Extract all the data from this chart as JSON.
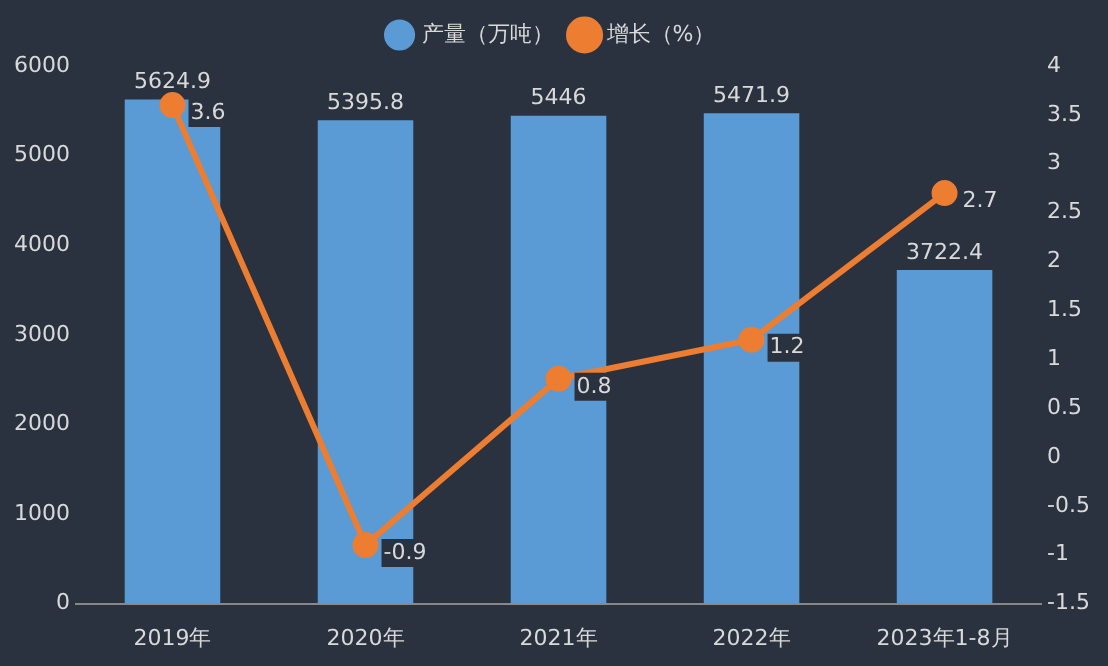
{
  "chart_data": {
    "type": "bar",
    "categories": [
      "2019年",
      "2020年",
      "2021年",
      "2022年",
      "2023年1-8月"
    ],
    "series": [
      {
        "name": "产量（万吨）",
        "color": "#5b9bd5",
        "values": [
          5624.9,
          5395.8,
          5446,
          5471.9,
          3722.4
        ]
      },
      {
        "name": "增长（%）",
        "type": "line",
        "axis": "y2",
        "color": "#ed7d31",
        "values": [
          3.6,
          -0.9,
          0.8,
          1.2,
          2.7
        ]
      }
    ],
    "ylim": [
      0,
      6000
    ],
    "yticks": [
      0,
      1000,
      2000,
      3000,
      4000,
      5000,
      6000
    ],
    "y2lim": [
      -1.5,
      4
    ],
    "y2ticks": [
      -1.5,
      -1,
      -0.5,
      0,
      0.5,
      1,
      1.5,
      2,
      2.5,
      3,
      3.5,
      4
    ],
    "data_labels": true,
    "legend": "top",
    "grid": false,
    "marker": "circle",
    "line_style": "solid"
  }
}
